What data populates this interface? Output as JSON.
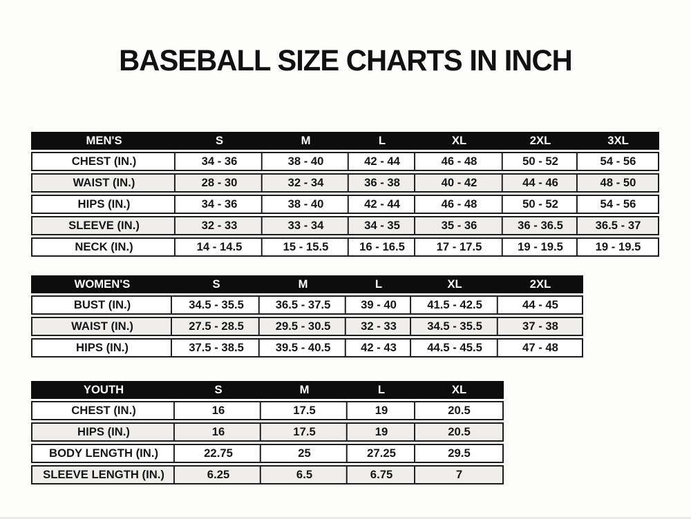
{
  "title": "BASEBALL SIZE CHARTS IN INCH",
  "colors": {
    "header-bg": "#0d0d0d",
    "header-text": "#ffffff",
    "row-bg": "#ffffff",
    "row-alt-bg": "#efeeec",
    "border": "#1c1c1c",
    "text": "#161616",
    "page-bg": "#fdfdfc"
  },
  "chart_data": [
    {
      "type": "table",
      "name": "mens",
      "header_label": "MEN'S",
      "sizes": [
        "S",
        "M",
        "L",
        "XL",
        "2XL",
        "3XL"
      ],
      "rows": [
        {
          "label": "CHEST (IN.)",
          "values": [
            "34 - 36",
            "38 - 40",
            "42 - 44",
            "46 - 48",
            "50 - 52",
            "54 - 56"
          ]
        },
        {
          "label": "WAIST (IN.)",
          "values": [
            "28 - 30",
            "32 - 34",
            "36 - 38",
            "40 - 42",
            "44 - 46",
            "48 - 50"
          ]
        },
        {
          "label": "HIPS (IN.)",
          "values": [
            "34 - 36",
            "38 - 40",
            "42 - 44",
            "46 - 48",
            "50 - 52",
            "54 - 56"
          ]
        },
        {
          "label": "SLEEVE (IN.)",
          "values": [
            "32 - 33",
            "33 - 34",
            "34 - 35",
            "35 - 36",
            "36 - 36.5",
            "36.5 - 37"
          ]
        },
        {
          "label": "NECK (IN.)",
          "values": [
            "14 - 14.5",
            "15 - 15.5",
            "16 - 16.5",
            "17 - 17.5",
            "19 - 19.5",
            "19 - 19.5"
          ]
        }
      ]
    },
    {
      "type": "table",
      "name": "womens",
      "header_label": "WOMEN'S",
      "sizes": [
        "S",
        "M",
        "L",
        "XL",
        "2XL"
      ],
      "rows": [
        {
          "label": "BUST (IN.)",
          "values": [
            "34.5 - 35.5",
            "36.5 - 37.5",
            "39 - 40",
            "41.5 - 42.5",
            "44 - 45"
          ]
        },
        {
          "label": "WAIST (IN.)",
          "values": [
            "27.5 - 28.5",
            "29.5 - 30.5",
            "32 - 33",
            "34.5 - 35.5",
            "37 - 38"
          ]
        },
        {
          "label": "HIPS (IN.)",
          "values": [
            "37.5 - 38.5",
            "39.5 - 40.5",
            "42 - 43",
            "44.5 - 45.5",
            "47 - 48"
          ]
        }
      ]
    },
    {
      "type": "table",
      "name": "youth",
      "header_label": "YOUTH",
      "sizes": [
        "S",
        "M",
        "L",
        "XL"
      ],
      "rows": [
        {
          "label": "CHEST (IN.)",
          "values": [
            "16",
            "17.5",
            "19",
            "20.5"
          ]
        },
        {
          "label": "HIPS (IN.)",
          "values": [
            "16",
            "17.5",
            "19",
            "20.5"
          ]
        },
        {
          "label": "BODY LENGTH (IN.)",
          "values": [
            "22.75",
            "25",
            "27.25",
            "29.5"
          ]
        },
        {
          "label": "SLEEVE LENGTH (IN.)",
          "values": [
            "6.25",
            "6.5",
            "6.75",
            "7"
          ]
        }
      ]
    }
  ]
}
